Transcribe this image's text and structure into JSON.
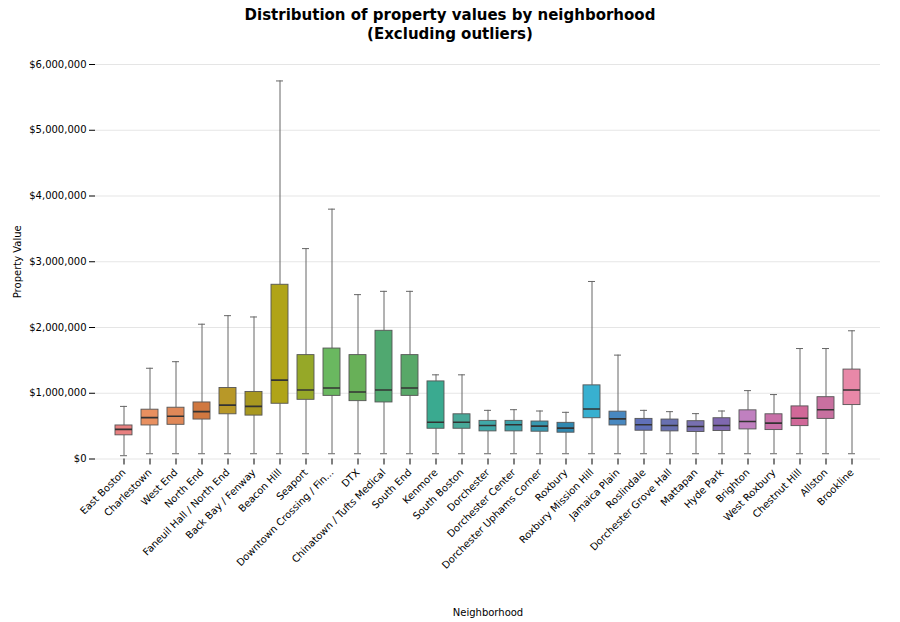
{
  "chart_data": {
    "type": "box",
    "title": "Distribution of property values by neighborhood\n(Excluding outliers)",
    "xlabel": "Neighborhood",
    "ylabel": "Property Value",
    "categories": [
      "East Boston",
      "Charlestown",
      "West End",
      "North End",
      "Faneuil Hall / North End",
      "Back Bay / Fenway",
      "Beacon Hill",
      "Seaport",
      "Downtown Crossing / Fin...",
      "DTX",
      "Chinatown / Tufts Medical",
      "South End",
      "Kenmore",
      "South Boston",
      "Dorchester",
      "Dorchester Center",
      "Dorchester Uphams Corner",
      "Roxbury",
      "Roxbury Mission Hill",
      "Jamaica Plain",
      "Roslindale",
      "Dorchester Grove Hall",
      "Mattapan",
      "Hyde Park",
      "Brighton",
      "West Roxbury",
      "Chestnut Hill",
      "Allston",
      "Brookline"
    ],
    "colors": [
      "#e88080",
      "#e89060",
      "#e08858",
      "#d07840",
      "#b89828",
      "#a89820",
      "#b0a418",
      "#96a828",
      "#6ab860",
      "#68b058",
      "#50a870",
      "#58a868",
      "#3aaa90",
      "#48a898",
      "#40a8a8",
      "#3aa0a8",
      "#3898b0",
      "#3088b0",
      "#38b0d0",
      "#4888c0",
      "#6070b8",
      "#6870b0",
      "#7870b0",
      "#8068b0",
      "#c080c0",
      "#c870a8",
      "#d06898",
      "#c870a0",
      "#e888a8"
    ],
    "whislo": [
      50000,
      80000,
      80000,
      80000,
      80000,
      80000,
      80000,
      80000,
      80000,
      80000,
      80000,
      80000,
      80000,
      80000,
      80000,
      80000,
      80000,
      80000,
      80000,
      80000,
      80000,
      80000,
      80000,
      80000,
      80000,
      80000,
      80000,
      80000,
      80000
    ],
    "q1": [
      360000,
      510000,
      520000,
      600000,
      680000,
      660000,
      840000,
      900000,
      960000,
      880000,
      860000,
      960000,
      460000,
      460000,
      420000,
      420000,
      415000,
      400000,
      620000,
      510000,
      430000,
      420000,
      410000,
      425000,
      450000,
      440000,
      500000,
      610000,
      820000
    ],
    "med": [
      450000,
      630000,
      650000,
      720000,
      820000,
      800000,
      1200000,
      1050000,
      1080000,
      1020000,
      1050000,
      1080000,
      560000,
      560000,
      510000,
      520000,
      500000,
      470000,
      760000,
      610000,
      520000,
      510000,
      495000,
      510000,
      570000,
      545000,
      620000,
      750000,
      1050000
    ],
    "q3": [
      510000,
      750000,
      780000,
      860000,
      1080000,
      1020000,
      2650000,
      1580000,
      1680000,
      1580000,
      1950000,
      1580000,
      1180000,
      680000,
      580000,
      580000,
      570000,
      550000,
      1120000,
      720000,
      610000,
      600000,
      575000,
      620000,
      740000,
      680000,
      800000,
      940000,
      1360000
    ],
    "whishi": [
      800000,
      1380000,
      1480000,
      2050000,
      2180000,
      2160000,
      5750000,
      3200000,
      3800000,
      2500000,
      2550000,
      2550000,
      1280000,
      1280000,
      740000,
      750000,
      730000,
      710000,
      2700000,
      1580000,
      740000,
      720000,
      690000,
      730000,
      1040000,
      980000,
      1680000,
      1680000,
      1950000
    ],
    "ylim": [
      0,
      6000000
    ],
    "yticks": [
      {
        "value": 0,
        "label": "$0"
      },
      {
        "value": 1000000,
        "label": "$1,000,000"
      },
      {
        "value": 2000000,
        "label": "$2,000,000"
      },
      {
        "value": 3000000,
        "label": "$3,000,000"
      },
      {
        "value": 4000000,
        "label": "$4,000,000"
      },
      {
        "value": 5000000,
        "label": "$5,000,000"
      },
      {
        "value": 6000000,
        "label": "$6,000,000"
      }
    ],
    "grid": true
  }
}
